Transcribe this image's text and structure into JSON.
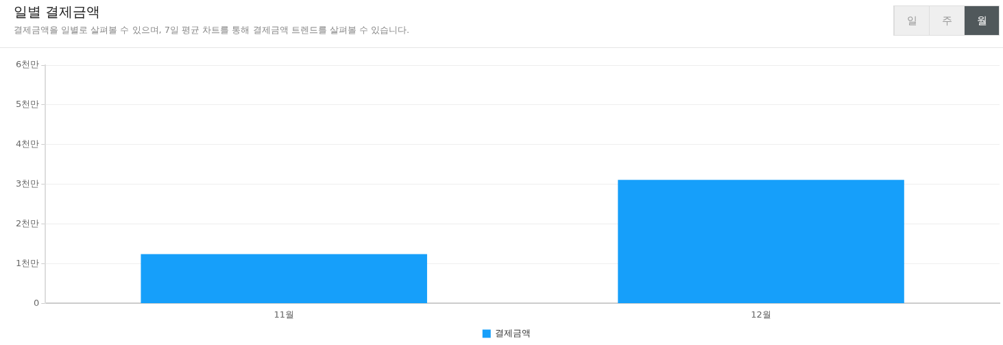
{
  "chart_data": {
    "type": "bar",
    "title": "일별 결제금액",
    "subtitle": "결제금액을 일별로 살펴볼 수 있으며, 7일 평균 차트를 통해 결제금액 트렌드를 살펴볼 수 있습니다.",
    "annotations": [
      "일",
      "주",
      "월"
    ],
    "categories": [
      "11월",
      "12월"
    ],
    "series": [
      {
        "name": "결제금액",
        "color": "#169ffa",
        "values": [
          1.24,
          3.11
        ]
      }
    ],
    "ylim": [
      0,
      6
    ],
    "yticks": [
      0,
      {
        "value": 1,
        "label": "1천만"
      },
      {
        "value": 2,
        "label": "2천만"
      },
      {
        "value": 3,
        "label": "3천만"
      },
      {
        "value": 4,
        "label": "4천만"
      },
      {
        "value": 5,
        "label": "5천만"
      },
      {
        "value": 6,
        "label": "6천만"
      }
    ],
    "grid": "y",
    "legend": "bottom"
  }
}
